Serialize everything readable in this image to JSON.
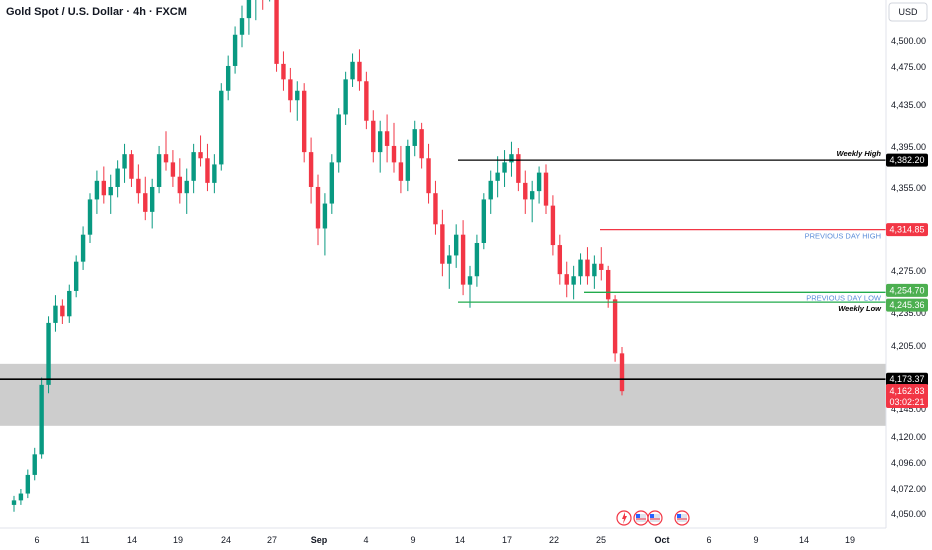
{
  "header": {
    "title": "Gold Spot / U.S. Dollar · 4h · FXCM",
    "currency": "USD"
  },
  "colors": {
    "up": "#089981",
    "down": "#f23645",
    "black": "#000000",
    "zone": "#c8c8c8",
    "green_line": "#22ab4c",
    "red_line": "#f23645",
    "annotation_blue": "#5b8dd9"
  },
  "chart_data": {
    "type": "candlestick",
    "y_ticks": [
      "4,500.00",
      "4,475.00",
      "4,435.00",
      "4,395.00",
      "4,355.00",
      "4,275.00",
      "4,235.00",
      "4,205.00",
      "4,145.00",
      "4,120.00",
      "4,096.00",
      "4,072.00",
      "4,050.00"
    ],
    "y_tick_values": [
      4500,
      4475,
      4435,
      4395,
      4355,
      4275,
      4235,
      4205,
      4145,
      4120,
      4096,
      4072,
      4050
    ],
    "x_ticks": [
      "6",
      "11",
      "14",
      "19",
      "24",
      "27",
      "Sep",
      "4",
      "9",
      "14",
      "17",
      "22",
      "25",
      "Oct",
      "6",
      "9",
      "14",
      "19"
    ],
    "x_tick_bold": [
      "Sep",
      "Oct"
    ],
    "levels": [
      {
        "name": "weekly-high",
        "label": "Weekly High",
        "price": 4382.2,
        "price_label": "4,382.20",
        "color": "#000000",
        "badge_color": "#000000"
      },
      {
        "name": "previous-day-high",
        "label": "PREVIOUS DAY HIGH",
        "price": 4314.85,
        "price_label": "4,314.85",
        "color": "#f23645",
        "badge_color": "#f23645"
      },
      {
        "name": "previous-day-low",
        "label": "PREVIOUS DAY LOW",
        "price": 4254.7,
        "price_label": "4,254.70",
        "color": "#22ab4c",
        "badge_color": "#4caf50"
      },
      {
        "name": "weekly-low",
        "label": "Weekly Low",
        "price": 4245.36,
        "price_label": "4,245.36",
        "color": "#22ab4c",
        "badge_color": "#4caf50"
      },
      {
        "name": "support",
        "label": "",
        "price": 4173.37,
        "price_label": "4,173.37",
        "color": "#000000",
        "badge_color": "#000000"
      }
    ],
    "zone": {
      "from": 4130,
      "to": 4188
    },
    "last_price": {
      "price": 4162.83,
      "price_label": "4,162.83",
      "countdown": "03:02:21",
      "color": "#f23645"
    },
    "candles_ohlc_approx": [
      [
        4058,
        4066,
        4052,
        4062
      ],
      [
        4062,
        4072,
        4058,
        4068
      ],
      [
        4068,
        4090,
        4064,
        4085
      ],
      [
        4085,
        4110,
        4080,
        4104
      ],
      [
        4104,
        4175,
        4100,
        4168
      ],
      [
        4168,
        4232,
        4160,
        4226
      ],
      [
        4226,
        4252,
        4218,
        4242
      ],
      [
        4242,
        4248,
        4225,
        4232
      ],
      [
        4232,
        4262,
        4226,
        4256
      ],
      [
        4256,
        4290,
        4250,
        4284
      ],
      [
        4284,
        4318,
        4276,
        4310
      ],
      [
        4310,
        4350,
        4302,
        4344
      ],
      [
        4344,
        4372,
        4330,
        4362
      ],
      [
        4362,
        4376,
        4340,
        4348
      ],
      [
        4348,
        4368,
        4330,
        4356
      ],
      [
        4356,
        4382,
        4346,
        4374
      ],
      [
        4374,
        4398,
        4360,
        4388
      ],
      [
        4388,
        4392,
        4356,
        4364
      ],
      [
        4364,
        4378,
        4340,
        4350
      ],
      [
        4350,
        4366,
        4324,
        4332
      ],
      [
        4332,
        4364,
        4316,
        4356
      ],
      [
        4356,
        4396,
        4350,
        4388
      ],
      [
        4388,
        4410,
        4372,
        4380
      ],
      [
        4380,
        4392,
        4356,
        4366
      ],
      [
        4366,
        4384,
        4340,
        4350
      ],
      [
        4350,
        4374,
        4330,
        4362
      ],
      [
        4362,
        4398,
        4350,
        4390
      ],
      [
        4390,
        4406,
        4376,
        4384
      ],
      [
        4384,
        4398,
        4352,
        4360
      ],
      [
        4360,
        4388,
        4350,
        4378
      ],
      [
        4378,
        4458,
        4372,
        4450
      ],
      [
        4450,
        4486,
        4440,
        4476
      ],
      [
        4476,
        4514,
        4468,
        4506
      ],
      [
        4506,
        4534,
        4494,
        4522
      ],
      [
        4522,
        4548,
        4506,
        4540
      ],
      [
        4540,
        4552,
        4520,
        4548
      ],
      [
        4548,
        4550,
        4530,
        4546
      ],
      [
        4546,
        4552,
        4538,
        4550
      ],
      [
        4550,
        4552,
        4470,
        4478
      ],
      [
        4478,
        4490,
        4450,
        4462
      ],
      [
        4462,
        4474,
        4428,
        4440
      ],
      [
        4440,
        4460,
        4420,
        4450
      ],
      [
        4450,
        4458,
        4380,
        4390
      ],
      [
        4390,
        4404,
        4340,
        4356
      ],
      [
        4356,
        4368,
        4300,
        4316
      ],
      [
        4316,
        4350,
        4290,
        4340
      ],
      [
        4340,
        4388,
        4330,
        4380
      ],
      [
        4380,
        4432,
        4370,
        4426
      ],
      [
        4426,
        4470,
        4416,
        4462
      ],
      [
        4462,
        4488,
        4454,
        4480
      ],
      [
        4480,
        4492,
        4450,
        4460
      ],
      [
        4460,
        4470,
        4412,
        4420
      ],
      [
        4420,
        4430,
        4380,
        4390
      ],
      [
        4390,
        4420,
        4370,
        4410
      ],
      [
        4410,
        4426,
        4380,
        4396
      ],
      [
        4396,
        4418,
        4370,
        4380
      ],
      [
        4380,
        4396,
        4350,
        4362
      ],
      [
        4362,
        4402,
        4352,
        4396
      ],
      [
        4396,
        4420,
        4386,
        4412
      ],
      [
        4412,
        4418,
        4374,
        4384
      ],
      [
        4384,
        4398,
        4340,
        4350
      ],
      [
        4350,
        4362,
        4310,
        4320
      ],
      [
        4320,
        4334,
        4270,
        4282
      ],
      [
        4282,
        4300,
        4258,
        4290
      ],
      [
        4290,
        4320,
        4278,
        4310
      ],
      [
        4310,
        4324,
        4252,
        4262
      ],
      [
        4262,
        4280,
        4240,
        4270
      ],
      [
        4270,
        4310,
        4260,
        4302
      ],
      [
        4302,
        4350,
        4296,
        4344
      ],
      [
        4344,
        4372,
        4330,
        4362
      ],
      [
        4362,
        4386,
        4346,
        4370
      ],
      [
        4370,
        4392,
        4356,
        4380
      ],
      [
        4380,
        4400,
        4366,
        4388
      ],
      [
        4388,
        4394,
        4352,
        4360
      ],
      [
        4360,
        4372,
        4330,
        4344
      ],
      [
        4344,
        4362,
        4322,
        4352
      ],
      [
        4352,
        4376,
        4340,
        4370
      ],
      [
        4370,
        4378,
        4330,
        4338
      ],
      [
        4338,
        4348,
        4290,
        4300
      ],
      [
        4300,
        4310,
        4262,
        4272
      ],
      [
        4272,
        4284,
        4250,
        4262
      ],
      [
        4262,
        4280,
        4248,
        4270
      ],
      [
        4270,
        4292,
        4262,
        4286
      ],
      [
        4286,
        4298,
        4262,
        4270
      ],
      [
        4270,
        4290,
        4258,
        4282
      ],
      [
        4282,
        4298,
        4266,
        4276
      ],
      [
        4276,
        4280,
        4240,
        4248
      ],
      [
        4248,
        4252,
        4190,
        4198
      ],
      [
        4198,
        4204,
        4158,
        4162
      ]
    ]
  },
  "footer_icons": [
    "lightning-icon",
    "us-flag-event-icon-1",
    "us-flag-event-icon-2",
    "us-flag-event-icon-3"
  ]
}
